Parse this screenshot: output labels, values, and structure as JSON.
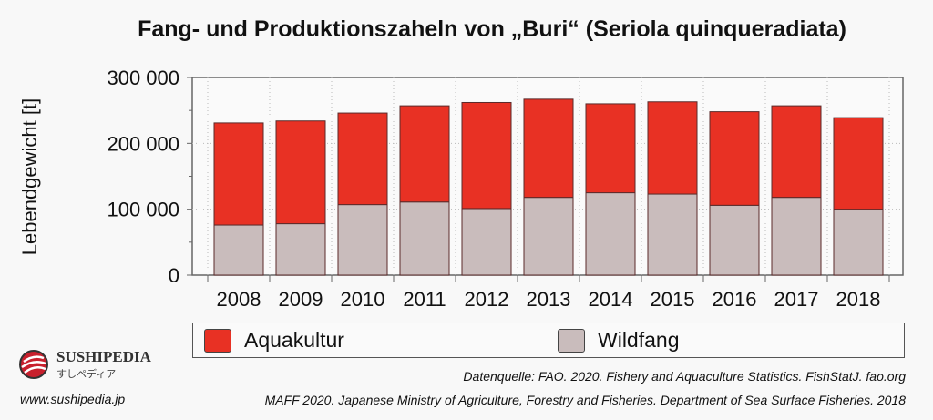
{
  "chart_data": {
    "type": "bar",
    "stacked": true,
    "title": "Fang- und Produktionszaheln von „Buri“ (Seriola quinqueradiata)",
    "ylabel": "Lebendgewicht [t]",
    "xlabel": "",
    "ylim": [
      0,
      300000
    ],
    "yticks": [
      0,
      100000,
      200000,
      300000
    ],
    "ytick_labels": [
      "0",
      "100 000",
      "200 000",
      "300 000"
    ],
    "grid": true,
    "legend_position": "bottom",
    "categories": [
      "2008",
      "2009",
      "2010",
      "2011",
      "2012",
      "2013",
      "2014",
      "2015",
      "2016",
      "2017",
      "2018"
    ],
    "series": [
      {
        "name": "Wildfang",
        "color": "#c9bcbc",
        "values": [
          76000,
          78000,
          107000,
          111000,
          101000,
          118000,
          125000,
          123000,
          106000,
          118000,
          100000
        ]
      },
      {
        "name": "Aquakultur",
        "color": "#e83124",
        "values": [
          155000,
          156000,
          139000,
          146000,
          161000,
          149000,
          135000,
          140000,
          142000,
          139000,
          139000
        ]
      }
    ]
  },
  "footer": {
    "source1": "Datenquelle: FAO. 2020. Fishery and Aquaculture Statistics. FishStatJ. fao.org",
    "source2": "MAFF 2020. Japanese Ministry of Agriculture, Forestry and Fisheries. Department of Sea Surface Fisheries. 2018",
    "url": "www.sushipedia.jp",
    "logo_name": "SUSHIPEDIA",
    "logo_sub": "すしペディア"
  }
}
